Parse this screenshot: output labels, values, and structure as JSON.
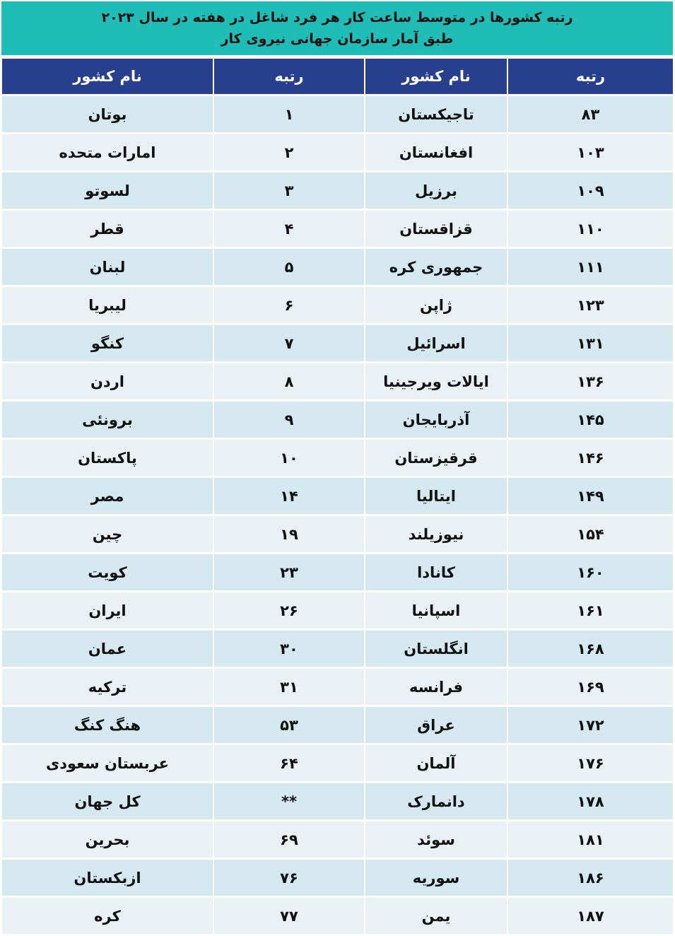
{
  "title": {
    "line1": "رتبه کشورها در متوسط ساعت کار هر فرد شاغل در هفته در سال ۲۰۲۳",
    "line2": "طبق آمار سازمان جهانی نیروی کار"
  },
  "colors": {
    "title_bg": "#20bdb6",
    "header_bg": "#283f8e",
    "row_odd": "#d5e7ef",
    "row_even": "#e9f1f5"
  },
  "headers": [
    "رتبه",
    "نام کشور",
    "رتبه",
    "نام کشور"
  ],
  "rows": [
    [
      "۸۳",
      "تاجیکستان",
      "۱",
      "بوتان"
    ],
    [
      "۱۰۳",
      "افغانستان",
      "۲",
      "امارات متحده"
    ],
    [
      "۱۰۹",
      "برزیل",
      "۳",
      "لسوتو"
    ],
    [
      "۱۱۰",
      "قزاقستان",
      "۴",
      "قطر"
    ],
    [
      "۱۱۱",
      "جمهوری کره",
      "۵",
      "لبنان"
    ],
    [
      "۱۲۳",
      "ژاپن",
      "۶",
      "لیبریا"
    ],
    [
      "۱۳۱",
      "اسرائیل",
      "۷",
      "کنگو"
    ],
    [
      "۱۳۶",
      "ایالات ویرجینیا",
      "۸",
      "اردن"
    ],
    [
      "۱۴۵",
      "آذربایجان",
      "۹",
      "برونئی"
    ],
    [
      "۱۴۶",
      "قرقیزستان",
      "۱۰",
      "پاکستان"
    ],
    [
      "۱۴۹",
      "ایتالیا",
      "۱۴",
      "مصر"
    ],
    [
      "۱۵۴",
      "نیوزیلند",
      "۱۹",
      "چین"
    ],
    [
      "۱۶۰",
      "کانادا",
      "۲۳",
      "کویت"
    ],
    [
      "۱۶۱",
      "اسپانیا",
      "۲۶",
      "ایران"
    ],
    [
      "۱۶۸",
      "انگلستان",
      "۳۰",
      "عمان"
    ],
    [
      "۱۶۹",
      "فرانسه",
      "۳۱",
      "ترکیه"
    ],
    [
      "۱۷۲",
      "عراق",
      "۵۳",
      "هنگ کنگ"
    ],
    [
      "۱۷۶",
      "آلمان",
      "۶۴",
      "عربستان سعودی"
    ],
    [
      "۱۷۸",
      "دانمارک",
      "**",
      "کل جهان"
    ],
    [
      "۱۸۱",
      "سوئد",
      "۶۹",
      "بحرین"
    ],
    [
      "۱۸۶",
      "سوریه",
      "۷۶",
      "ازبکستان"
    ],
    [
      "۱۸۷",
      "یمن",
      "۷۷",
      "کره"
    ]
  ]
}
